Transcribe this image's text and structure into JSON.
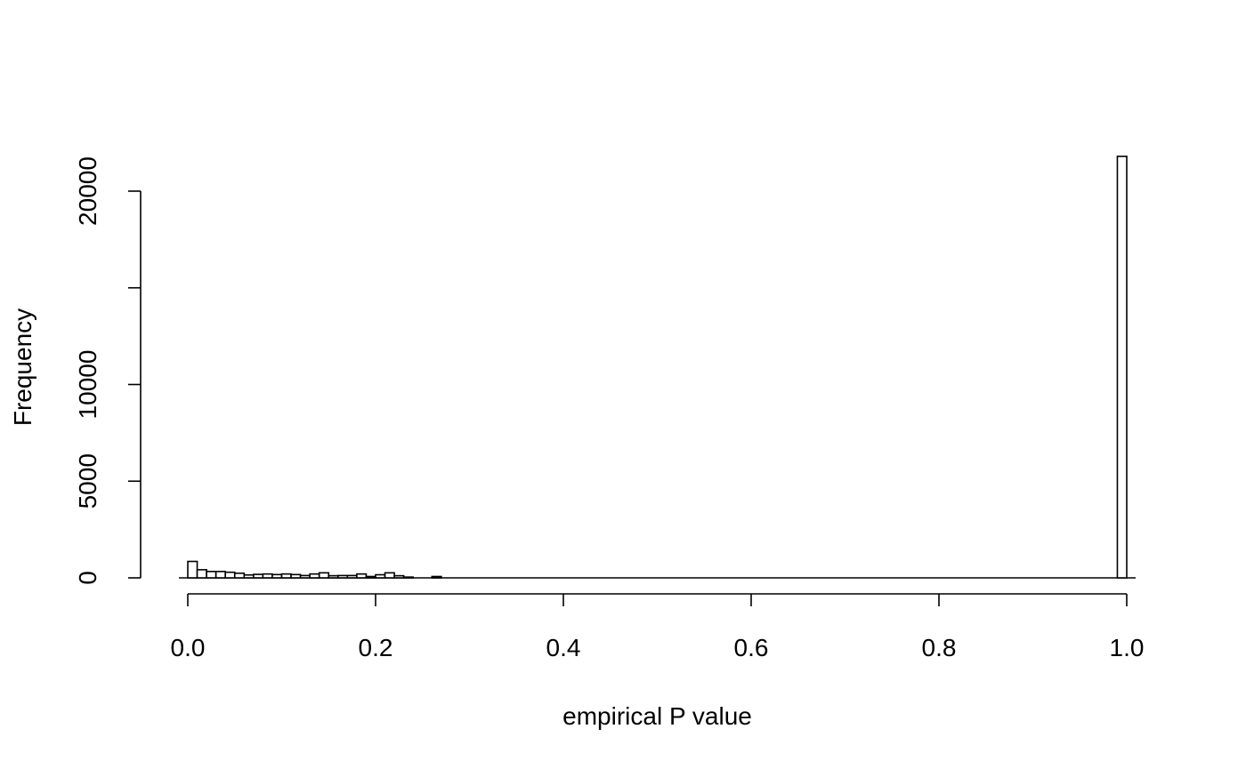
{
  "chart_data": {
    "type": "bar",
    "title": "",
    "xlabel": "empirical P value",
    "ylabel": "Frequency",
    "xlim": [
      0,
      1
    ],
    "ylim": [
      0,
      22000
    ],
    "bin_width": 0.01,
    "x_ticks": [
      {
        "value": 0.0,
        "label": "0.0"
      },
      {
        "value": 0.2,
        "label": "0.2"
      },
      {
        "value": 0.4,
        "label": "0.4"
      },
      {
        "value": 0.6,
        "label": "0.6"
      },
      {
        "value": 0.8,
        "label": "0.8"
      },
      {
        "value": 1.0,
        "label": "1.0"
      }
    ],
    "y_ticks": [
      {
        "value": 0,
        "label": "0"
      },
      {
        "value": 5000,
        "label": "5000"
      },
      {
        "value": 10000,
        "label": "10000"
      },
      {
        "value": 15000,
        "label": ""
      },
      {
        "value": 20000,
        "label": "20000"
      }
    ],
    "bins": [
      {
        "x0": 0.0,
        "x1": 0.01,
        "count": 850
      },
      {
        "x0": 0.01,
        "x1": 0.02,
        "count": 420
      },
      {
        "x0": 0.02,
        "x1": 0.03,
        "count": 330
      },
      {
        "x0": 0.03,
        "x1": 0.04,
        "count": 330
      },
      {
        "x0": 0.04,
        "x1": 0.05,
        "count": 290
      },
      {
        "x0": 0.05,
        "x1": 0.06,
        "count": 240
      },
      {
        "x0": 0.06,
        "x1": 0.07,
        "count": 150
      },
      {
        "x0": 0.07,
        "x1": 0.08,
        "count": 180
      },
      {
        "x0": 0.08,
        "x1": 0.09,
        "count": 200
      },
      {
        "x0": 0.09,
        "x1": 0.1,
        "count": 170
      },
      {
        "x0": 0.1,
        "x1": 0.11,
        "count": 200
      },
      {
        "x0": 0.11,
        "x1": 0.12,
        "count": 170
      },
      {
        "x0": 0.12,
        "x1": 0.13,
        "count": 120
      },
      {
        "x0": 0.13,
        "x1": 0.14,
        "count": 200
      },
      {
        "x0": 0.14,
        "x1": 0.15,
        "count": 260
      },
      {
        "x0": 0.15,
        "x1": 0.16,
        "count": 110
      },
      {
        "x0": 0.16,
        "x1": 0.17,
        "count": 120
      },
      {
        "x0": 0.17,
        "x1": 0.18,
        "count": 120
      },
      {
        "x0": 0.18,
        "x1": 0.19,
        "count": 200
      },
      {
        "x0": 0.19,
        "x1": 0.2,
        "count": 70
      },
      {
        "x0": 0.2,
        "x1": 0.21,
        "count": 160
      },
      {
        "x0": 0.21,
        "x1": 0.22,
        "count": 260
      },
      {
        "x0": 0.22,
        "x1": 0.23,
        "count": 110
      },
      {
        "x0": 0.23,
        "x1": 0.24,
        "count": 40
      },
      {
        "x0": 0.26,
        "x1": 0.27,
        "count": 70
      },
      {
        "x0": 0.99,
        "x1": 1.0,
        "count": 21800
      }
    ]
  }
}
